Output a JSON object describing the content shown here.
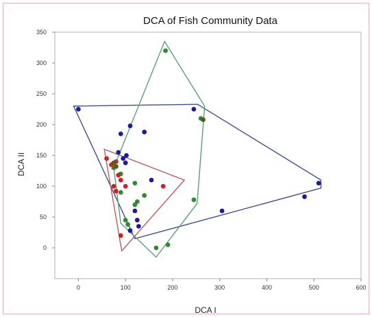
{
  "chart_data": {
    "type": "scatter",
    "title": "DCA of Fish Community Data",
    "xlabel": "DCA I",
    "ylabel": "DCA II",
    "xlim": [
      -50,
      600
    ],
    "ylim": [
      -50,
      350
    ],
    "xticks": [
      "0",
      "100",
      "200",
      "300",
      "400",
      "500",
      "600"
    ],
    "yticks": [
      "0",
      "50",
      "100",
      "150",
      "200",
      "250",
      "300",
      "350"
    ],
    "xtick_values": [
      0,
      100,
      200,
      300,
      400,
      500,
      600
    ],
    "ytick_values": [
      0,
      50,
      100,
      150,
      200,
      250,
      300,
      350
    ],
    "grid": false,
    "series": [
      {
        "color": "#1a1aa6",
        "hull_color": "#3d4f8f",
        "points": [
          [
            0,
            225
          ],
          [
            90,
            185
          ],
          [
            110,
            198
          ],
          [
            140,
            188
          ],
          [
            85,
            155
          ],
          [
            95,
            145
          ],
          [
            100,
            138
          ],
          [
            102,
            150
          ],
          [
            155,
            110
          ],
          [
            120,
            60
          ],
          [
            125,
            45
          ],
          [
            128,
            35
          ],
          [
            110,
            28
          ],
          [
            245,
            225
          ],
          [
            305,
            60
          ],
          [
            480,
            83
          ],
          [
            510,
            105
          ]
        ],
        "hull": [
          [
            -10,
            230
          ],
          [
            253,
            233
          ],
          [
            515,
            110
          ],
          [
            515,
            97
          ],
          [
            120,
            15
          ]
        ]
      },
      {
        "color": "#2e8b2e",
        "hull_color": "#5a9f7a",
        "points": [
          [
            185,
            320
          ],
          [
            260,
            210
          ],
          [
            245,
            78
          ],
          [
            120,
            105
          ],
          [
            90,
            90
          ],
          [
            125,
            75
          ],
          [
            140,
            85
          ],
          [
            120,
            70
          ],
          [
            100,
            45
          ],
          [
            105,
            38
          ],
          [
            165,
            0
          ],
          [
            190,
            5
          ],
          [
            90,
            120
          ],
          [
            75,
            130
          ]
        ],
        "hull": [
          [
            183,
            335
          ],
          [
            268,
            230
          ],
          [
            252,
            72
          ],
          [
            165,
            -15
          ],
          [
            90,
            40
          ],
          [
            75,
            130
          ]
        ]
      },
      {
        "color": "#cc2222",
        "hull_color": "#c05a5a",
        "points": [
          [
            60,
            145
          ],
          [
            70,
            135
          ],
          [
            80,
            140
          ],
          [
            85,
            118
          ],
          [
            90,
            110
          ],
          [
            100,
            100
          ],
          [
            75,
            100
          ],
          [
            80,
            92
          ],
          [
            180,
            100
          ],
          [
            90,
            20
          ]
        ],
        "hull": [
          [
            55,
            160
          ],
          [
            225,
            110
          ],
          [
            92,
            -5
          ]
        ]
      },
      {
        "color": "#5a5a1a",
        "points": [
          [
            75,
            138
          ],
          [
            80,
            132
          ],
          [
            265,
            208
          ]
        ]
      }
    ]
  }
}
